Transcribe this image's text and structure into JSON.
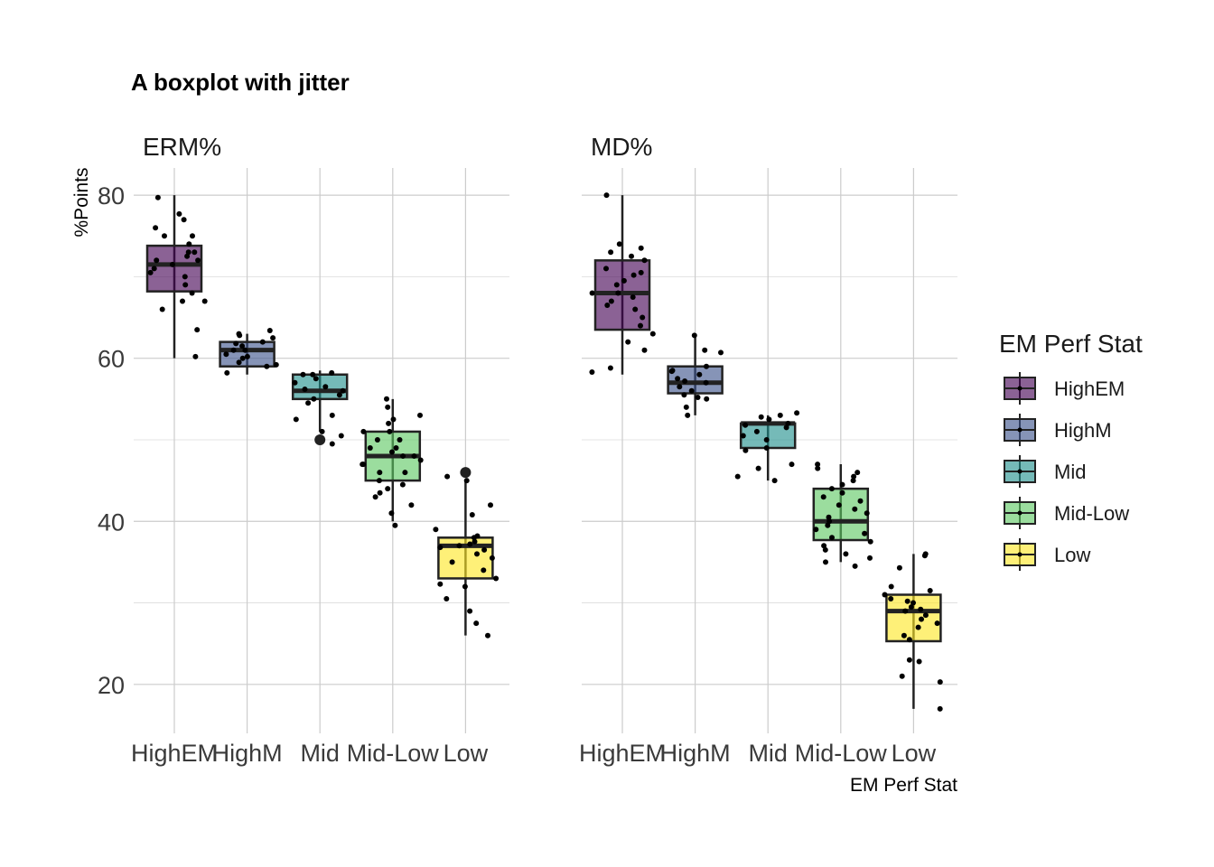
{
  "chart_data": {
    "type": "boxplot",
    "title": "A boxplot with jitter",
    "ylabel": "%Points",
    "xlabel": "EM Perf Stat",
    "ylim": [
      14,
      84
    ],
    "yticks": [
      20,
      40,
      60,
      80
    ],
    "grid": true,
    "categories": [
      "HighEM",
      "HighM",
      "Mid",
      "Mid-Low",
      "Low"
    ],
    "legend": {
      "title": "EM Perf Stat",
      "position": "right",
      "entries": [
        "HighEM",
        "HighM",
        "Mid",
        "Mid-Low",
        "Low"
      ]
    },
    "colors": {
      "HighEM": "#440154",
      "HighM": "#3b528b",
      "Mid": "#21908c",
      "Mid-Low": "#5dc863",
      "Low": "#fde725"
    },
    "panels": [
      {
        "name": "ERM%",
        "boxes": [
          {
            "category": "HighEM",
            "min": 60,
            "q1": 68.2,
            "median": 71.5,
            "q3": 73.8,
            "max": 80,
            "outliers": [],
            "points": [
              77,
              66,
              67,
              67,
              69,
              70,
              71,
              72,
              72.5,
              73,
              74,
              75,
              75,
              76,
              77.7,
              79.7,
              72,
              68,
              63.5,
              60.2,
              70.5,
              71.5,
              73
            ]
          },
          {
            "category": "HighM",
            "min": 58,
            "q1": 59,
            "median": 61,
            "q3": 62,
            "max": 63,
            "outliers": [],
            "points": [
              63,
              61,
              59.5,
              62.5,
              63.4,
              61.5,
              60,
              59,
              58.2,
              60.5,
              61.8,
              62.8,
              60.2,
              59.2,
              61,
              62
            ]
          },
          {
            "category": "Mid",
            "min": 51,
            "q1": 55,
            "median": 56,
            "q3": 58,
            "max": 58.5,
            "outliers": [
              50
            ],
            "points": [
              58,
              57.5,
              56,
              55.5,
              54.5,
              51,
              50.5,
              49.5,
              52.5,
              56.5,
              57,
              58.2,
              55,
              53,
              56.2,
              58
            ]
          },
          {
            "category": "Mid-Low",
            "min": 40,
            "q1": 45,
            "median": 48,
            "q3": 51,
            "max": 55,
            "outliers": [],
            "points": [
              55,
              54,
              53,
              52,
              51,
              50,
              49,
              48,
              47,
              46,
              45,
              44,
              43,
              42,
              41,
              39.5,
              48,
              50,
              46,
              47,
              49,
              51,
              52.5,
              44.5,
              43.5,
              48.5,
              47.5
            ]
          },
          {
            "category": "Low",
            "min": 26,
            "q1": 33,
            "median": 37,
            "q3": 38,
            "max": 45,
            "outliers": [
              46
            ],
            "points": [
              45.5,
              45,
              42,
              40.8,
              39,
              38,
              37.5,
              37,
              36.5,
              36,
              35,
              34,
              33,
              32,
              30.5,
              29,
              27.5,
              26,
              37.2,
              38.2,
              36.8,
              35.5,
              32.3
            ]
          }
        ]
      },
      {
        "name": "MD%",
        "boxes": [
          {
            "category": "HighEM",
            "min": 58,
            "q1": 63.5,
            "median": 68,
            "q3": 72,
            "max": 80,
            "outliers": [],
            "points": [
              80,
              74,
              73.5,
              73,
              72,
              71,
              70.5,
              69,
              68,
              68,
              67,
              66,
              65,
              64,
              63,
              62,
              61,
              58.8,
              58.3,
              66.5,
              69.5,
              72.5,
              70.2,
              67.5
            ]
          },
          {
            "category": "HighM",
            "min": 53,
            "q1": 55.7,
            "median": 57,
            "q3": 59,
            "max": 63,
            "outliers": [],
            "points": [
              62.8,
              61,
              60.7,
              59,
              58.5,
              58,
              57.5,
              57,
              56,
              55.5,
              55,
              54,
              53,
              56.5,
              57.2,
              58.4,
              55.2
            ]
          },
          {
            "category": "Mid",
            "min": 45,
            "q1": 49,
            "median": 52,
            "q3": 52,
            "max": 53,
            "outliers": [],
            "points": [
              53.3,
              53,
              52.5,
              52,
              51.5,
              51,
              50,
              49,
              48.7,
              47,
              46.5,
              45.5,
              45,
              52.8,
              50.5,
              51.8
            ]
          },
          {
            "category": "Mid-Low",
            "min": 35,
            "q1": 37.7,
            "median": 40,
            "q3": 44,
            "max": 47,
            "outliers": [],
            "points": [
              47,
              46.5,
              46,
              45.5,
              45,
              44,
              43,
              42,
              41,
              40,
              39,
              38.5,
              38,
              37.5,
              37,
              36.5,
              36,
              35.5,
              35,
              34.5,
              40.5,
              42.5,
              39.5,
              44.5,
              41.5,
              43.5
            ]
          },
          {
            "category": "Low",
            "min": 17,
            "q1": 25.3,
            "median": 29,
            "q3": 31,
            "max": 36,
            "outliers": [],
            "points": [
              36,
              35.8,
              34.3,
              32,
              31.5,
              31,
              30.5,
              30,
              29.5,
              29,
              28.5,
              28,
              27,
              26,
              25.5,
              23,
              22.8,
              21,
              20.3,
              17,
              29.2,
              30.2,
              27.5
            ]
          }
        ]
      }
    ]
  }
}
